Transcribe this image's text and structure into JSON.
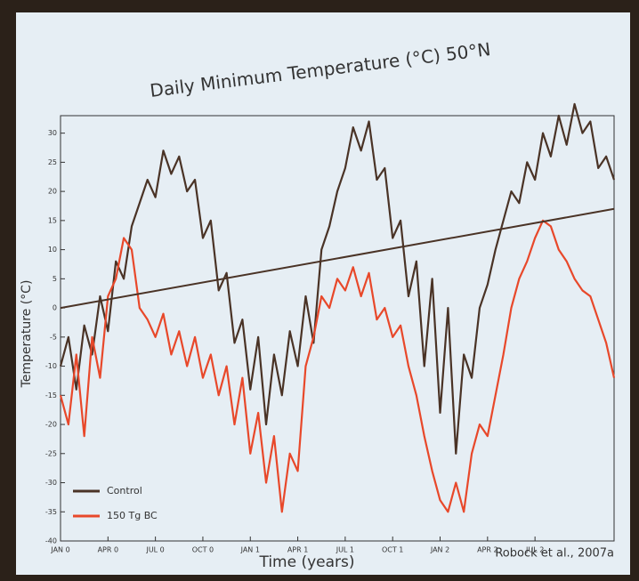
{
  "chart_data": {
    "type": "line",
    "title": "Daily Minimum Temperature (°C) 50°N",
    "x_label": "Time (years)",
    "y_label": "Temperature (°C)",
    "annotation": "Robock et al., 2007a",
    "xlim": [
      0,
      35
    ],
    "ylim": [
      -40,
      33
    ],
    "yticks": [
      -40,
      -35,
      -30,
      -25,
      -20,
      -15,
      -10,
      -5,
      0,
      5,
      10,
      15,
      20,
      25,
      30
    ],
    "xticks": [
      {
        "value": 0,
        "label": "JAN 0"
      },
      {
        "value": 3,
        "label": "APR 0"
      },
      {
        "value": 6,
        "label": "JUL 0"
      },
      {
        "value": 9,
        "label": "OCT 0"
      },
      {
        "value": 12,
        "label": "JAN 1"
      },
      {
        "value": 15,
        "label": "APR 1"
      },
      {
        "value": 18,
        "label": "JUL 1"
      },
      {
        "value": 21,
        "label": "OCT 1"
      },
      {
        "value": 24,
        "label": "JAN 2"
      },
      {
        "value": 27,
        "label": "APR 2"
      },
      {
        "value": 30,
        "label": "JUL 2"
      }
    ],
    "x": [
      0,
      0.5,
      1,
      1.5,
      2,
      2.5,
      3,
      3.5,
      4,
      4.5,
      5,
      5.5,
      6,
      6.5,
      7,
      7.5,
      8,
      8.5,
      9,
      9.5,
      10,
      10.5,
      11,
      11.5,
      12,
      12.5,
      13,
      13.5,
      14,
      14.5,
      15,
      15.5,
      16,
      16.5,
      17,
      17.5,
      18,
      18.5,
      19,
      19.5,
      20,
      20.5,
      21,
      21.5,
      22,
      22.5,
      23,
      23.5,
      24,
      24.5,
      25,
      25.5,
      26,
      26.5,
      27,
      27.5,
      28,
      28.5,
      29,
      29.5,
      30,
      30.5,
      31,
      31.5,
      32,
      32.5,
      33,
      33.5,
      34,
      34.5,
      35
    ],
    "series": [
      {
        "name": "Control",
        "color": "#4a3326",
        "values": [
          -10,
          -5,
          -14,
          -3,
          -8,
          2,
          -4,
          8,
          5,
          14,
          18,
          22,
          19,
          27,
          23,
          26,
          20,
          22,
          12,
          15,
          3,
          6,
          -6,
          -2,
          -14,
          -5,
          -20,
          -8,
          -15,
          -4,
          -10,
          2,
          -6,
          10,
          14,
          20,
          24,
          31,
          27,
          32,
          22,
          24,
          12,
          15,
          2,
          8,
          -10,
          5,
          -18,
          0,
          -25,
          -8,
          -12,
          0,
          4,
          10,
          15,
          20,
          18,
          25,
          22,
          30,
          26,
          33,
          28,
          35,
          30,
          32,
          24,
          26,
          22
        ]
      },
      {
        "name": "150 Tg BC",
        "color": "#e8482a",
        "values": [
          -15,
          -20,
          -8,
          -22,
          -5,
          -12,
          2,
          5,
          12,
          10,
          0,
          -2,
          -5,
          -1,
          -8,
          -4,
          -10,
          -5,
          -12,
          -8,
          -15,
          -10,
          -20,
          -12,
          -25,
          -18,
          -30,
          -22,
          -35,
          -25,
          -28,
          -10,
          -5,
          2,
          0,
          5,
          3,
          7,
          2,
          6,
          -2,
          0,
          -5,
          -3,
          -10,
          -15,
          -22,
          -28,
          -33,
          -35,
          -30,
          -35,
          -25,
          -20,
          -22,
          -15,
          -8,
          0,
          5,
          8,
          12,
          15,
          14,
          10,
          8,
          5,
          3,
          2,
          -2,
          -6,
          -12
        ]
      }
    ],
    "trend_line": {
      "x": [
        0,
        35
      ],
      "y": [
        0,
        17
      ],
      "color": "#4a3326"
    }
  }
}
